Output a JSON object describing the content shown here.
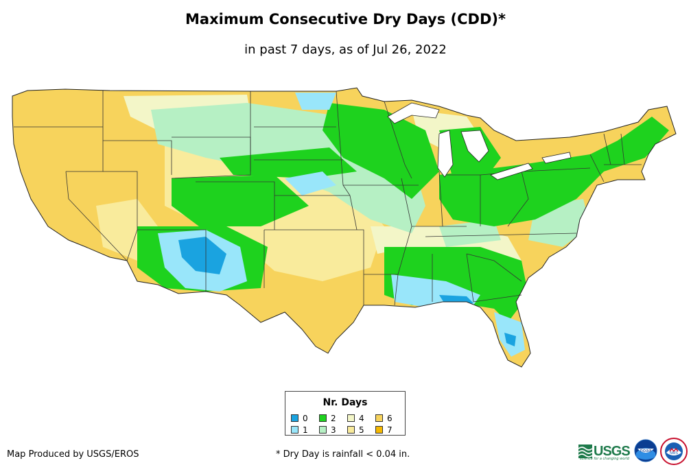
{
  "header": {
    "title": "Maximum Consecutive Dry Days (CDD)*",
    "subtitle": "in past 7 days, as of Jul 26, 2022"
  },
  "legend": {
    "title": "Nr. Days",
    "items": [
      {
        "label": "0",
        "color": "#1aa3e0"
      },
      {
        "label": "2",
        "color": "#1ed21e"
      },
      {
        "label": "4",
        "color": "#f3f6c8"
      },
      {
        "label": "6",
        "color": "#f7d35c"
      },
      {
        "label": "1",
        "color": "#99e6fa"
      },
      {
        "label": "3",
        "color": "#b6f0c4"
      },
      {
        "label": "5",
        "color": "#f9eb9c"
      },
      {
        "label": "7",
        "color": "#f5b800"
      }
    ]
  },
  "footer": {
    "credit": "Map Produced by USGS/EROS",
    "footnote": "* Dry Day is rainfall < 0.04 in."
  },
  "logos": {
    "usgs_text": "USGS",
    "usgs_tagline": "science for a changing world",
    "noaa_text": "noaa",
    "nws_text": "NWS"
  }
}
